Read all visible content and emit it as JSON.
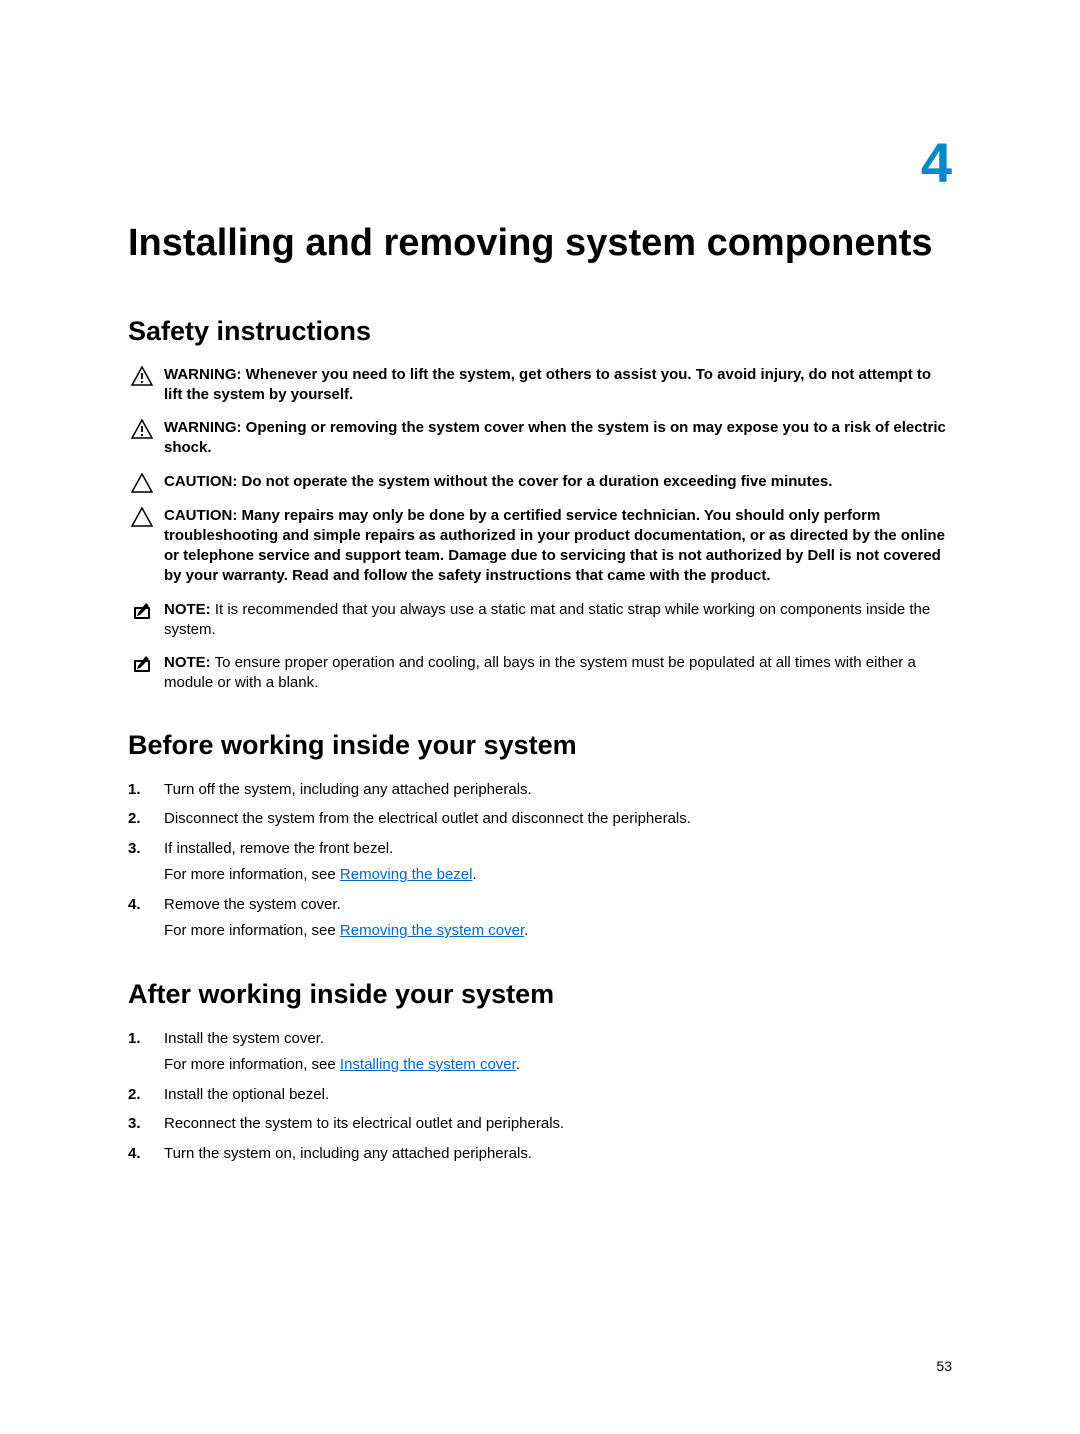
{
  "chapter": {
    "number": "4",
    "title": "Installing and removing system components"
  },
  "sections": {
    "safety": {
      "title": "Safety instructions",
      "warnings": [
        {
          "type": "warning",
          "label": "WARNING:",
          "text": "Whenever you need to lift the system, get others to assist you. To avoid injury, do not attempt to lift the system by yourself."
        },
        {
          "type": "warning",
          "label": "WARNING:",
          "text": "Opening or removing the system cover when the system is on may expose you to a risk of electric shock."
        },
        {
          "type": "caution",
          "label": "CAUTION:",
          "text": "Do not operate the system without the cover for a duration exceeding five minutes."
        },
        {
          "type": "caution",
          "label": "CAUTION:",
          "text": "Many repairs may only be done by a certified service technician. You should only perform troubleshooting and simple repairs as authorized in your product documentation, or as directed by the online or telephone service and support team. Damage due to servicing that is not authorized by Dell is not covered by your warranty. Read and follow the safety instructions that came with the product."
        },
        {
          "type": "note",
          "label": "NOTE:",
          "text": "It is recommended that you always use a static mat and static strap while working on components inside the system."
        },
        {
          "type": "note",
          "label": "NOTE:",
          "text": "To ensure proper operation and cooling, all bays in the system must be populated at all times with either a module or with a blank."
        }
      ]
    },
    "before": {
      "title": "Before working inside your system",
      "steps": [
        {
          "text": "Turn off the system, including any attached peripherals."
        },
        {
          "text": "Disconnect the system from the electrical outlet and disconnect the peripherals."
        },
        {
          "text": "If installed, remove the front bezel.",
          "sub_prefix": "For more information, see ",
          "link": "Removing the bezel",
          "sub_suffix": "."
        },
        {
          "text": "Remove the system cover.",
          "sub_prefix": "For more information, see ",
          "link": "Removing the system cover",
          "sub_suffix": "."
        }
      ]
    },
    "after": {
      "title": "After working inside your system",
      "steps": [
        {
          "text": "Install the system cover.",
          "sub_prefix": "For more information, see ",
          "link": "Installing the system cover",
          "sub_suffix": "."
        },
        {
          "text": "Install the optional bezel."
        },
        {
          "text": "Reconnect the system to its electrical outlet and peripherals."
        },
        {
          "text": "Turn the system on, including any attached peripherals."
        }
      ]
    }
  },
  "page_number": "53",
  "colors": {
    "accent": "#0088cc",
    "link": "#0066cc",
    "warning_stroke": "#000000",
    "caution_stroke": "#000000",
    "note_stroke": "#000000"
  }
}
